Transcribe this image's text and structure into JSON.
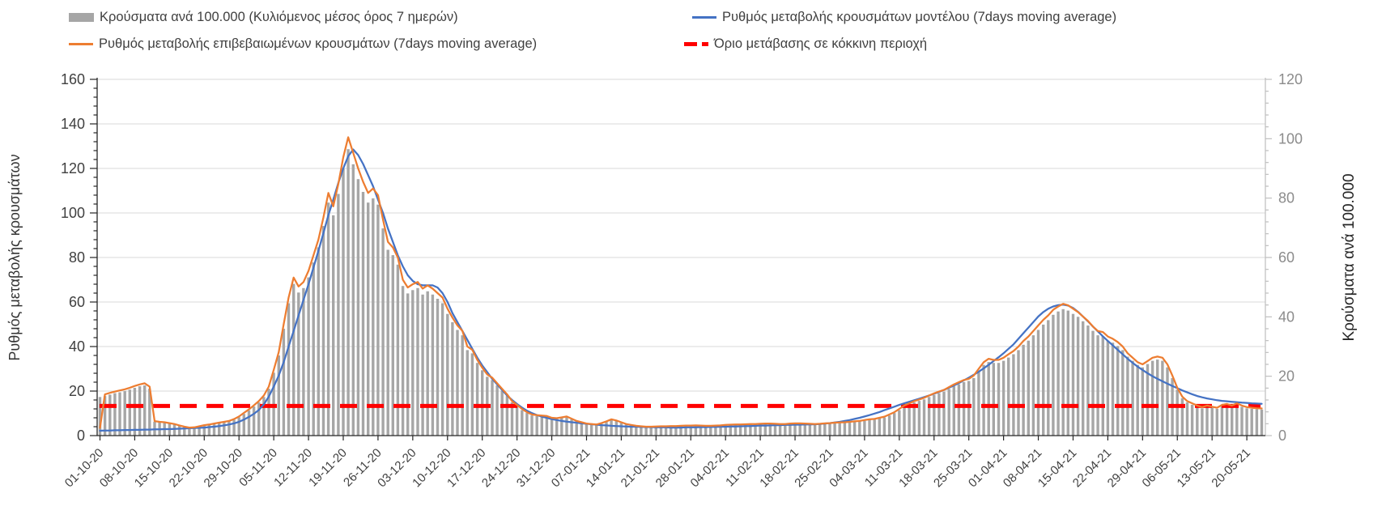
{
  "chart_data": {
    "type": "combo",
    "title": "",
    "start_date": "01-10-20",
    "end_date": "20-05-21",
    "days_per_tick": 7,
    "x_tick_labels": [
      "01-10-20",
      "08-10-20",
      "15-10-20",
      "22-10-20",
      "29-10-20",
      "05-11-20",
      "12-11-20",
      "19-11-20",
      "26-11-20",
      "03-12-20",
      "10-12-20",
      "17-12-20",
      "24-12-20",
      "31-12-20",
      "07-01-21",
      "14-01-21",
      "21-01-21",
      "28-01-21",
      "04-02-21",
      "11-02-21",
      "18-02-21",
      "25-02-21",
      "04-03-21",
      "11-03-21",
      "18-03-21",
      "25-03-21",
      "01-04-21",
      "08-04-21",
      "15-04-21",
      "22-04-21",
      "29-04-21",
      "06-05-21",
      "13-05-21",
      "20-05-21"
    ],
    "left_axis": {
      "label": "Ρυθμός μεταβολής κρουσμάτων",
      "min": 0,
      "max": 160,
      "step": 20,
      "minor_step": 4,
      "tick_labels": [
        "0",
        "20",
        "40",
        "60",
        "80",
        "100",
        "120",
        "140",
        "160"
      ]
    },
    "right_axis": {
      "label": "Κρούσματα ανά 100.000",
      "min": 0,
      "max": 120,
      "step": 20,
      "minor_step": 4,
      "tick_labels": [
        "0",
        "20",
        "40",
        "60",
        "80",
        "100",
        "120"
      ]
    },
    "grid": "horizontal-left-axis-majors",
    "legend_position": "top",
    "series": [
      {
        "name": "Κρούσματα ανά 100.000 (Κυλιόμενος μέσος όρος 7 ημερών)",
        "type": "bar",
        "axis": "right",
        "color": "#a6a6a6",
        "values": [
          13,
          13.3,
          13.8,
          14.3,
          14.6,
          15,
          15.5,
          16.1,
          16.6,
          16.9,
          15.8,
          4.7,
          4.5,
          4.3,
          4,
          3.7,
          3.3,
          2.9,
          2.6,
          2.7,
          3,
          3.4,
          3.6,
          3.9,
          4.2,
          4.5,
          4.8,
          5.3,
          6.2,
          7.3,
          8.5,
          9.8,
          11.2,
          13,
          15.8,
          21.2,
          27,
          36,
          44.6,
          51.1,
          48.2,
          49.7,
          53.3,
          58.3,
          63.4,
          70.6,
          78.5,
          74.2,
          81.4,
          90,
          96.5,
          91.4,
          86.4,
          82.1,
          78.5,
          79.9,
          77.8,
          69.8,
          62.6,
          60.8,
          57.6,
          50.4,
          47.9,
          49,
          49.7,
          47.5,
          48.6,
          47.5,
          46.1,
          44.6,
          41,
          38.2,
          35.6,
          33.8,
          28.8,
          27.7,
          24.5,
          22,
          19.8,
          18.7,
          16.9,
          15.1,
          13.3,
          11.2,
          9.9,
          8.6,
          7.6,
          6.8,
          6.6,
          6.5,
          6.3,
          5.8,
          5.6,
          5.9,
          6.2,
          5.5,
          4.8,
          4.3,
          3.9,
          3.7,
          3.6,
          4,
          4.6,
          5.3,
          4.9,
          4.3,
          3.7,
          3.5,
          3.2,
          3,
          2.9,
          2.9,
          3,
          3,
          3,
          3.1,
          3.1,
          3.2,
          3.2,
          3.2,
          3.3,
          3.2,
          3.2,
          3.2,
          3.2,
          3.3,
          3.5,
          3.5,
          3.6,
          3.6,
          3.7,
          3.7,
          3.7,
          3.8,
          3.9,
          3.9,
          3.8,
          3.7,
          3.7,
          3.9,
          4,
          4,
          3.9,
          3.8,
          3.7,
          3.8,
          4,
          4,
          4.2,
          4.2,
          4.3,
          4.5,
          4.6,
          4.8,
          5,
          5.3,
          5.4,
          5.8,
          6.1,
          6.8,
          7.6,
          8.6,
          9.7,
          10.4,
          11.2,
          11.7,
          12.2,
          13,
          13.7,
          14.3,
          14.8,
          15.7,
          16.6,
          17.3,
          18,
          18.4,
          19.4,
          21.6,
          23.8,
          24.8,
          24.5,
          24.5,
          25.2,
          26.3,
          27.4,
          28.8,
          30.6,
          32,
          33.8,
          35.6,
          37.4,
          38.9,
          40.7,
          41.8,
          42.6,
          42.1,
          41,
          40,
          38.5,
          37.1,
          35.3,
          33.8,
          33.5,
          32,
          31.3,
          30.2,
          28.8,
          26.6,
          25.2,
          23.8,
          23,
          24.1,
          25.2,
          25.6,
          25.2,
          23,
          19.4,
          15.5,
          12.6,
          11.2,
          10.4,
          9.7,
          9.2,
          9.7,
          9.4,
          9,
          9.9,
          10.2,
          9.7,
          10.4,
          9.7,
          9.2,
          9,
          8.9,
          8.8
        ]
      },
      {
        "name": "Ρυθμός μεταβολής κρουσμάτων μοντέλου (7days moving average)",
        "type": "line",
        "axis": "left",
        "color": "#4472c4",
        "values": [
          2.2,
          2.3,
          2.3,
          2.4,
          2.4,
          2.5,
          2.5,
          2.6,
          2.6,
          2.7,
          2.7,
          2.8,
          2.8,
          2.9,
          2.9,
          3,
          3.1,
          3.2,
          3.3,
          3.4,
          3.5,
          3.6,
          3.8,
          4,
          4.3,
          4.6,
          5,
          5.5,
          6.2,
          7.2,
          8.4,
          9.8,
          11.5,
          14,
          17.5,
          22,
          27,
          33,
          40,
          47,
          54,
          61,
          68,
          75.5,
          83,
          91,
          99,
          106,
          113.5,
          120,
          125.5,
          128.5,
          126,
          122,
          117,
          112,
          106,
          100,
          93,
          87,
          81,
          76,
          72,
          69.5,
          68,
          67.5,
          67.5,
          67.5,
          66.5,
          64,
          60,
          55,
          51,
          47,
          43,
          39,
          35,
          31.5,
          28.5,
          25.5,
          23,
          20.5,
          18,
          16,
          14.2,
          12.6,
          11.2,
          10.1,
          9.2,
          8.5,
          8,
          7.4,
          7,
          6.6,
          6.3,
          6,
          5.8,
          5.5,
          5.3,
          5.1,
          4.9,
          4.7,
          4.6,
          4.4,
          4.3,
          4.2,
          4.1,
          4,
          4,
          3.9,
          3.8,
          3.8,
          3.7,
          3.7,
          3.7,
          3.6,
          3.6,
          3.6,
          3.7,
          3.7,
          3.7,
          3.8,
          3.8,
          3.9,
          3.9,
          4,
          4,
          4.1,
          4.1,
          4.2,
          4.3,
          4.3,
          4.4,
          4.5,
          4.5,
          4.6,
          4.7,
          4.7,
          4.8,
          4.8,
          4.9,
          4.9,
          5,
          5,
          5.1,
          5.2,
          5.4,
          5.6,
          5.9,
          6.2,
          6.6,
          7,
          7.5,
          8,
          8.6,
          9.2,
          9.9,
          10.6,
          11.4,
          12.2,
          13,
          13.8,
          14.5,
          15.2,
          15.9,
          16.6,
          17.3,
          18,
          18.8,
          19.6,
          20.5,
          21.5,
          22.5,
          23.6,
          24.8,
          26,
          27.3,
          28.7,
          30.2,
          31.8,
          33.5,
          35.2,
          37,
          39,
          41,
          43.5,
          46,
          48.5,
          51,
          53.5,
          55.5,
          57,
          58,
          58.6,
          58.8,
          58.4,
          57.3,
          55.6,
          53.5,
          51.3,
          49,
          46.8,
          44.6,
          42.5,
          40.5,
          38.5,
          36.5,
          34.5,
          32.7,
          31,
          29.5,
          28,
          26.7,
          25.5,
          24.4,
          23.3,
          22.3,
          21.3,
          20.3,
          19.4,
          18.6,
          17.8,
          17.2,
          16.7,
          16.3,
          15.9,
          15.6,
          15.4,
          15.2,
          15,
          14.8,
          14.7,
          14.5,
          14.4,
          14.3
        ]
      },
      {
        "name": "Ρυθμός μεταβολής επιβεβαιωμένων κρουσμάτων (7days moving average)",
        "type": "line",
        "axis": "left",
        "color": "#ed7d31",
        "values": [
          3.5,
          18.5,
          19.2,
          19.8,
          20.3,
          20.8,
          21.5,
          22.3,
          23,
          23.5,
          22,
          6.5,
          6.2,
          6,
          5.6,
          5.2,
          4.6,
          4,
          3.6,
          3.7,
          4.2,
          4.7,
          5,
          5.4,
          5.8,
          6.2,
          6.6,
          7.4,
          8.6,
          10.2,
          11.8,
          13.6,
          15.5,
          18,
          22,
          29.5,
          37.5,
          50,
          62,
          71,
          67,
          69,
          74,
          81,
          88,
          98,
          109,
          103,
          113,
          125,
          134,
          127,
          120,
          114,
          109,
          111,
          108,
          97,
          87,
          84.5,
          80,
          70,
          66.5,
          68,
          69,
          66,
          67.5,
          66,
          64,
          62,
          57,
          53,
          49.5,
          47,
          40,
          38.5,
          34,
          30.5,
          27.5,
          26,
          23.5,
          21,
          18.5,
          15.5,
          13.8,
          12,
          10.5,
          9.5,
          9.2,
          9,
          8.8,
          8,
          7.8,
          8.2,
          8.6,
          7.6,
          6.6,
          6,
          5.4,
          5.2,
          5,
          5.6,
          6.4,
          7.3,
          6.8,
          6,
          5.2,
          4.8,
          4.4,
          4.2,
          4,
          4,
          4.1,
          4.2,
          4.2,
          4.3,
          4.3,
          4.4,
          4.5,
          4.5,
          4.6,
          4.5,
          4.4,
          4.4,
          4.5,
          4.6,
          4.8,
          4.9,
          5,
          5,
          5.1,
          5.2,
          5.2,
          5.3,
          5.4,
          5.4,
          5.3,
          5.2,
          5.2,
          5.4,
          5.5,
          5.5,
          5.4,
          5.3,
          5.2,
          5.3,
          5.5,
          5.6,
          5.8,
          5.9,
          6,
          6.2,
          6.4,
          6.6,
          7,
          7.3,
          7.5,
          8,
          8.5,
          9.5,
          10.5,
          12,
          13.5,
          14.5,
          15.5,
          16.2,
          17,
          18,
          19,
          19.8,
          20.5,
          21.8,
          23,
          24,
          25,
          25.5,
          27,
          30,
          33,
          34.5,
          34,
          34,
          35,
          36.5,
          38,
          40,
          42.5,
          44.5,
          47,
          49.5,
          52,
          54,
          56.5,
          58,
          59.2,
          58.5,
          57,
          55.5,
          53.5,
          51.5,
          49,
          47,
          46.5,
          44.5,
          43.5,
          42,
          40,
          37,
          35,
          33,
          32,
          33.5,
          35,
          35.5,
          35,
          32,
          27,
          21.5,
          17.5,
          15.5,
          14.5,
          13.5,
          12.8,
          13.5,
          13,
          12.5,
          13.8,
          14.2,
          13.5,
          14.5,
          13.5,
          12.8,
          12.5,
          12.3,
          12.2
        ]
      },
      {
        "name": "Όριο μετάβασης σε κόκκινη περιοχή",
        "type": "threshold",
        "axis": "right",
        "color": "#ff0000",
        "value": 10
      }
    ]
  }
}
